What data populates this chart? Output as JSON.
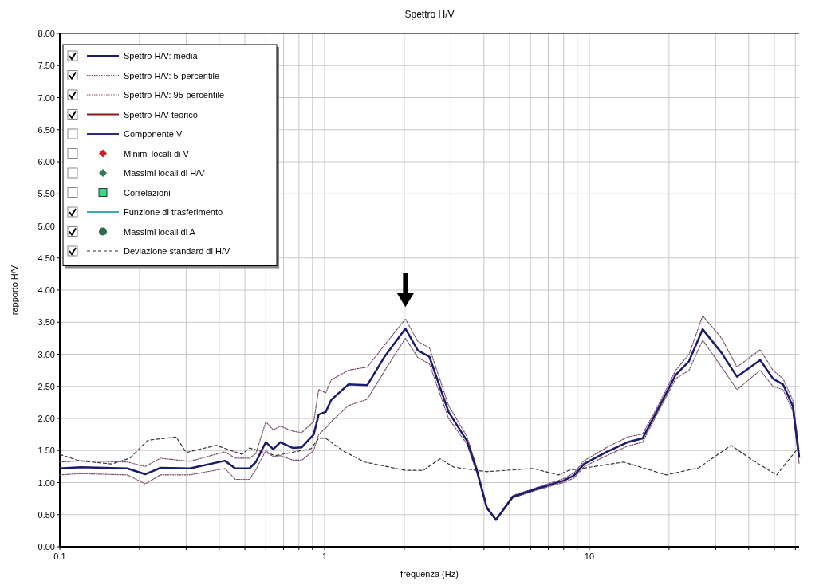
{
  "chart_data": {
    "type": "line",
    "title": "Spettro H/V",
    "xlabel": "frequenza (Hz)",
    "ylabel": "rapporto H/V",
    "log": "x",
    "grid": true,
    "legend": "top left",
    "xlim": [
      0.1,
      62
    ],
    "xticks": [
      0.1,
      {
        "value": 0.2,
        "label": null
      },
      {
        "value": 0.3,
        "label": null
      },
      {
        "value": 0.4,
        "label": null
      },
      {
        "value": 0.5,
        "label": null
      },
      {
        "value": 0.6,
        "label": null
      },
      {
        "value": 0.7,
        "label": null
      },
      {
        "value": 0.8,
        "label": null
      },
      {
        "value": 0.9,
        "label": null
      },
      1,
      {
        "value": 2,
        "label": null
      },
      {
        "value": 3,
        "label": null
      },
      {
        "value": 4,
        "label": null
      },
      {
        "value": 5,
        "label": null
      },
      {
        "value": 6,
        "label": null
      },
      {
        "value": 7,
        "label": null
      },
      {
        "value": 8,
        "label": null
      },
      {
        "value": 9,
        "label": null
      },
      10,
      {
        "value": 20,
        "label": null
      },
      {
        "value": 30,
        "label": null
      },
      {
        "value": 40,
        "label": null
      },
      {
        "value": 50,
        "label": null
      },
      {
        "value": 60,
        "label": null
      }
    ],
    "ylim": [
      0,
      8
    ],
    "yticks": [
      {
        "value": 0,
        "label": "0.00"
      },
      {
        "value": 0.5,
        "label": "0.50"
      },
      {
        "value": 1,
        "label": "1.00"
      },
      {
        "value": 1.5,
        "label": "1.50"
      },
      {
        "value": 2,
        "label": "2.00"
      },
      {
        "value": 2.5,
        "label": "2.50"
      },
      {
        "value": 3,
        "label": "3.00"
      },
      {
        "value": 3.5,
        "label": "3.50"
      },
      {
        "value": 4,
        "label": "4.00"
      },
      {
        "value": 4.5,
        "label": "4.50"
      },
      {
        "value": 5,
        "label": "5.00"
      },
      {
        "value": 5.5,
        "label": "5.50"
      },
      {
        "value": 6,
        "label": "6.00"
      },
      {
        "value": 6.5,
        "label": "6.50"
      },
      {
        "value": 7,
        "label": "7.00"
      },
      {
        "value": 7.5,
        "label": "7.50"
      },
      {
        "value": 8,
        "label": "8.00"
      }
    ],
    "x": [
      0.1,
      0.12,
      0.18,
      0.21,
      0.24,
      0.31,
      0.42,
      0.46,
      0.52,
      0.55,
      0.6,
      0.64,
      0.68,
      0.76,
      0.82,
      0.91,
      0.95,
      1.01,
      1.06,
      1.23,
      1.45,
      1.69,
      2.02,
      2.25,
      2.49,
      2.94,
      3.45,
      3.76,
      4.1,
      4.44,
      5.14,
      6.4,
      7.98,
      8.75,
      9.55,
      11.65,
      13.95,
      15.9,
      18.2,
      21.2,
      23.8,
      26.8,
      31.6,
      36.1,
      44.2,
      49.4,
      53.9,
      58.7,
      62
    ],
    "series": [
      {
        "name": "Spettro H/V: media",
        "color": "#1a1a6e",
        "line_style": "solid",
        "values": [
          1.22,
          1.24,
          1.22,
          1.13,
          1.23,
          1.22,
          1.34,
          1.22,
          1.22,
          1.32,
          1.63,
          1.52,
          1.63,
          1.54,
          1.55,
          1.75,
          2.06,
          2.1,
          2.29,
          2.53,
          2.52,
          2.97,
          3.4,
          3.06,
          2.96,
          2.1,
          1.65,
          1.19,
          0.61,
          0.42,
          0.78,
          0.91,
          1.03,
          1.11,
          1.29,
          1.48,
          1.63,
          1.69,
          2.15,
          2.68,
          2.89,
          3.39,
          3.02,
          2.65,
          2.91,
          2.62,
          2.53,
          2.19,
          1.4
        ]
      },
      {
        "name": "Spettro H/V: 5-percentile",
        "color": "#7a4a6e",
        "line_style": "dotted",
        "values": [
          1.12,
          1.14,
          1.12,
          0.98,
          1.12,
          1.12,
          1.22,
          1.05,
          1.05,
          1.2,
          1.5,
          1.4,
          1.42,
          1.35,
          1.35,
          1.5,
          1.75,
          1.85,
          1.95,
          2.2,
          2.3,
          2.75,
          3.25,
          2.95,
          2.85,
          2.0,
          1.6,
          1.15,
          0.59,
          0.41,
          0.76,
          0.89,
          1.0,
          1.07,
          1.25,
          1.42,
          1.57,
          1.63,
          2.1,
          2.62,
          2.75,
          3.22,
          2.8,
          2.45,
          2.75,
          2.5,
          2.45,
          2.12,
          1.3
        ]
      },
      {
        "name": "Spettro H/V: 95-percentile",
        "color": "#7a4a6e",
        "line_style": "dotted",
        "values": [
          1.32,
          1.34,
          1.32,
          1.25,
          1.38,
          1.33,
          1.48,
          1.38,
          1.38,
          1.45,
          1.95,
          1.82,
          1.88,
          1.8,
          1.78,
          1.95,
          2.45,
          2.4,
          2.6,
          2.75,
          2.8,
          3.15,
          3.55,
          3.2,
          3.1,
          2.2,
          1.72,
          1.23,
          0.63,
          0.43,
          0.8,
          0.93,
          1.06,
          1.15,
          1.34,
          1.55,
          1.71,
          1.76,
          2.2,
          2.75,
          3.0,
          3.6,
          3.25,
          2.8,
          3.07,
          2.75,
          2.62,
          2.28,
          1.5
        ]
      },
      {
        "name": "Spettro H/V teorico",
        "color": "#8b1a1a",
        "line_style": "solid",
        "values": [
          null,
          null,
          null,
          null,
          null,
          null,
          null,
          null,
          null,
          null,
          null,
          null,
          null,
          null,
          null,
          null,
          null,
          null,
          null,
          null,
          null,
          null,
          null,
          null,
          null,
          null,
          null,
          null,
          null,
          null,
          null,
          null,
          null,
          null,
          null,
          null,
          null,
          null,
          null,
          null,
          null,
          null,
          null,
          null,
          null,
          null,
          null,
          null,
          null
        ]
      },
      {
        "name": "Componente V",
        "color": "#2a2a80",
        "line_style": "solid",
        "values": [
          null,
          null,
          null,
          null,
          null,
          null,
          null,
          null,
          null,
          null,
          null,
          null,
          null,
          null,
          null,
          null,
          null,
          null,
          null,
          null,
          null,
          null,
          null,
          null,
          null,
          null,
          null,
          null,
          null,
          null,
          null,
          null,
          null,
          null,
          null,
          null,
          null,
          null,
          null,
          null,
          null,
          null,
          null,
          null,
          null,
          null,
          null,
          null,
          null
        ]
      },
      {
        "name": "Minimi locali di V",
        "type": "scatter",
        "marker": "diamond",
        "color": "#cc2222",
        "values": [
          null,
          null,
          null,
          null,
          null,
          null,
          null,
          null,
          null,
          null,
          null,
          null,
          null,
          null,
          null,
          null,
          null,
          null,
          null,
          null,
          null,
          null,
          null,
          null,
          null,
          null,
          null,
          null,
          null,
          null,
          null,
          null,
          null,
          null,
          null,
          null,
          null,
          null,
          null,
          null,
          null,
          null,
          null,
          null,
          null,
          null,
          null,
          null,
          null
        ]
      },
      {
        "name": "Massimi locali di H/V",
        "type": "scatter",
        "marker": "diamond",
        "color": "#2e7d5b",
        "values": [
          null,
          null,
          null,
          null,
          null,
          null,
          null,
          null,
          null,
          null,
          null,
          null,
          null,
          null,
          null,
          null,
          null,
          null,
          null,
          null,
          null,
          null,
          null,
          null,
          null,
          null,
          null,
          null,
          null,
          null,
          null,
          null,
          null,
          null,
          null,
          null,
          null,
          null,
          null,
          null,
          null,
          null,
          null,
          null,
          null,
          null,
          null,
          null,
          null
        ]
      },
      {
        "name": "Correlazioni",
        "type": "scatter",
        "marker": "square",
        "color": "#33dd88",
        "values": [
          null,
          null,
          null,
          null,
          null,
          null,
          null,
          null,
          null,
          null,
          null,
          null,
          null,
          null,
          null,
          null,
          null,
          null,
          null,
          null,
          null,
          null,
          null,
          null,
          null,
          null,
          null,
          null,
          null,
          null,
          null,
          null,
          null,
          null,
          null,
          null,
          null,
          null,
          null,
          null,
          null,
          null,
          null,
          null,
          null,
          null,
          null,
          null,
          null
        ]
      },
      {
        "name": "Funzione di trasferimento",
        "color": "#3fa9b5",
        "line_style": "solid",
        "values": [
          null,
          null,
          null,
          null,
          null,
          null,
          null,
          null,
          null,
          null,
          null,
          null,
          null,
          null,
          null,
          null,
          null,
          null,
          null,
          null,
          null,
          null,
          null,
          null,
          null,
          null,
          null,
          null,
          null,
          null,
          null,
          null,
          null,
          null,
          null,
          null,
          null,
          null,
          null,
          null,
          null,
          null,
          null,
          null,
          null,
          null,
          null,
          null,
          null
        ]
      },
      {
        "name": "Massimi locali di A",
        "type": "scatter",
        "marker": "circle",
        "color": "#2e6b4a",
        "values": [
          null,
          null,
          null,
          null,
          null,
          null,
          null,
          null,
          null,
          null,
          null,
          null,
          null,
          null,
          null,
          null,
          null,
          null,
          null,
          null,
          null,
          null,
          null,
          null,
          null,
          null,
          null,
          null,
          null,
          null,
          null,
          null,
          null,
          null,
          null,
          null,
          null,
          null,
          null,
          null,
          null,
          null,
          null,
          null,
          null,
          null,
          null,
          null,
          null
        ]
      },
      {
        "name": "Deviazione standard di H/V",
        "color": "#333333",
        "line_style": "dashed",
        "x": [
          0.1,
          0.118,
          0.157,
          0.184,
          0.215,
          0.275,
          0.3,
          0.39,
          0.488,
          0.52,
          0.653,
          0.89,
          0.95,
          1.01,
          1.19,
          1.42,
          2.02,
          2.36,
          2.73,
          3.08,
          4.1,
          6.11,
          7.66,
          8.36,
          13.5,
          19.5,
          25.9,
          34.3,
          41.3,
          51.0,
          61.5
        ],
        "values": [
          1.44,
          1.34,
          1.29,
          1.38,
          1.66,
          1.71,
          1.47,
          1.58,
          1.44,
          1.54,
          1.42,
          1.53,
          1.69,
          1.69,
          1.48,
          1.32,
          1.19,
          1.19,
          1.37,
          1.24,
          1.17,
          1.22,
          1.12,
          1.19,
          1.32,
          1.12,
          1.23,
          1.58,
          1.35,
          1.12,
          1.54
        ]
      }
    ]
  }
}
